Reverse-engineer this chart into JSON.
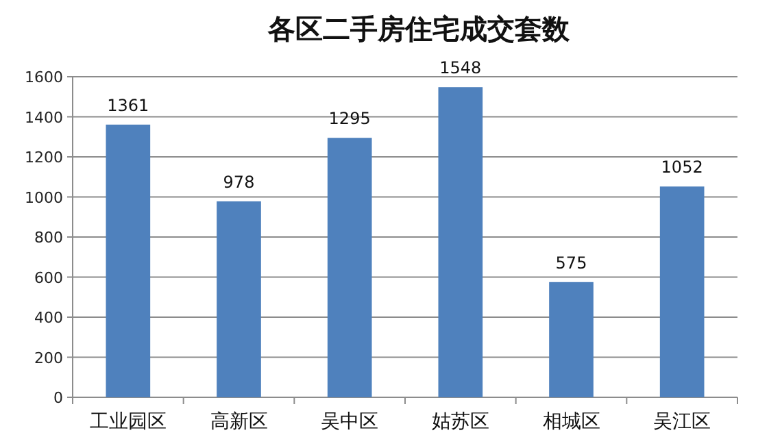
{
  "chart_data": {
    "type": "bar",
    "title": "各区二手房住宅成交套数",
    "categories": [
      "工业园区",
      "高新区",
      "吴中区",
      "姑苏区",
      "相城区",
      "吴江区"
    ],
    "values": [
      1361,
      978,
      1295,
      1548,
      575,
      1052
    ],
    "color": "#4f81bd",
    "ylim": [
      0,
      1600
    ],
    "yticks": [
      0,
      200,
      400,
      600,
      800,
      1000,
      1200,
      1400,
      1600
    ],
    "grid": "y",
    "data_labels": true
  }
}
